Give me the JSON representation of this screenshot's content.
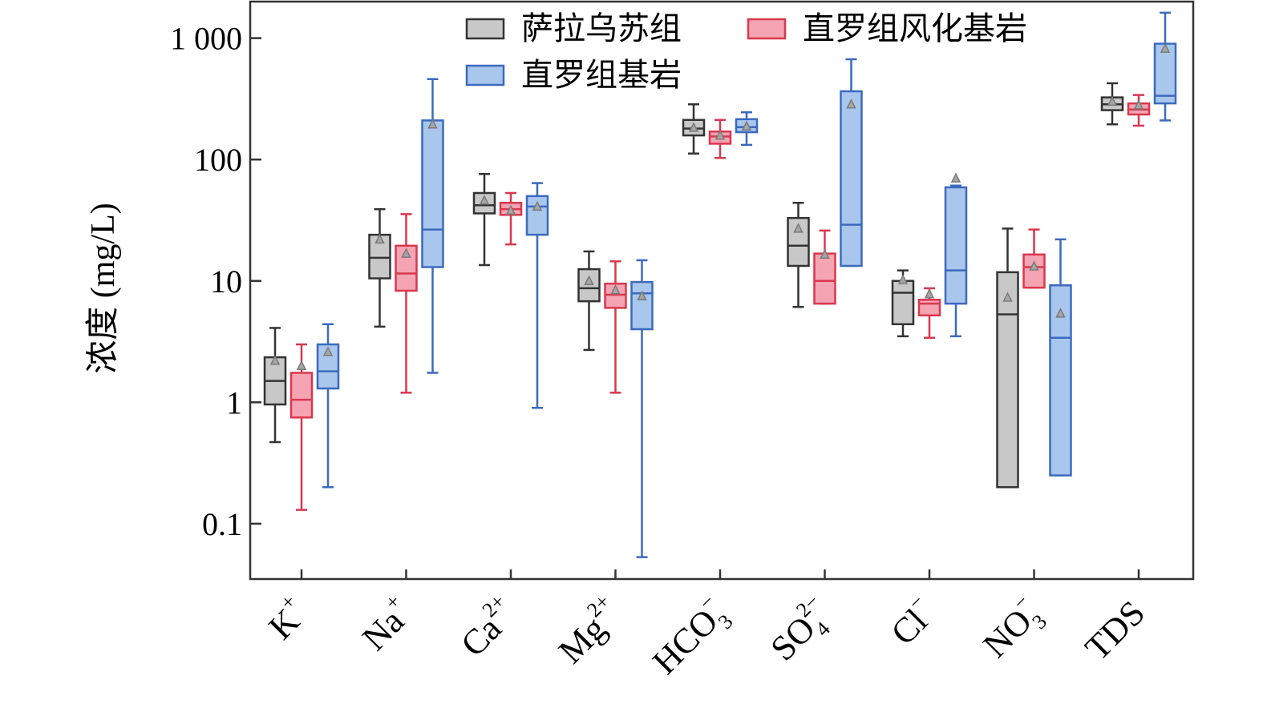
{
  "chart_data": {
    "type": "box",
    "ylabel": "浓度 (mg/L)",
    "yscale": "log",
    "ylim": [
      0.035,
      2000
    ],
    "yticks": [
      {
        "value": 0.1,
        "label": "0.1"
      },
      {
        "value": 1,
        "label": "1"
      },
      {
        "value": 10,
        "label": "10"
      },
      {
        "value": 100,
        "label": "100"
      },
      {
        "value": 1000,
        "label": "1 000"
      }
    ],
    "categories": [
      {
        "base": "K",
        "sup": "+",
        "sub": ""
      },
      {
        "base": "Na",
        "sup": "+",
        "sub": ""
      },
      {
        "base": "Ca",
        "sup": "2+",
        "sub": ""
      },
      {
        "base": "Mg",
        "sup": "2+",
        "sub": ""
      },
      {
        "base": "HCO",
        "sup": "−",
        "sub": "3"
      },
      {
        "base": "SO",
        "sup": "2−",
        "sub": "4"
      },
      {
        "base": "Cl",
        "sup": "−",
        "sub": ""
      },
      {
        "base": "NO",
        "sup": "−",
        "sub": "3"
      },
      {
        "base": "TDS",
        "sup": "",
        "sub": ""
      }
    ],
    "legend": {
      "placement": "top-center"
    },
    "series": [
      {
        "name": "萨拉乌苏组",
        "fill": "#c8c8c8",
        "stroke": "#333333",
        "boxes": [
          {
            "whislo": 0.47,
            "q1": 0.96,
            "med": 1.5,
            "q3": 2.35,
            "whishi": 4.1,
            "mean": 2.2
          },
          {
            "whislo": 4.2,
            "q1": 10.5,
            "med": 15.5,
            "q3": 24,
            "whishi": 39,
            "mean": 22
          },
          {
            "whislo": 13.5,
            "q1": 36,
            "med": 42,
            "q3": 53,
            "whishi": 76,
            "mean": 46
          },
          {
            "whislo": 2.7,
            "q1": 6.8,
            "med": 8.7,
            "q3": 12.5,
            "whishi": 17.5,
            "mean": 10
          },
          {
            "whislo": 112,
            "q1": 158,
            "med": 180,
            "q3": 212,
            "whishi": 285,
            "mean": 183
          },
          {
            "whislo": 6.1,
            "q1": 13.3,
            "med": 19.5,
            "q3": 33,
            "whishi": 44,
            "mean": 27
          },
          {
            "whislo": 3.5,
            "q1": 4.4,
            "med": 8.0,
            "q3": 10.0,
            "whishi": 12.2,
            "mean": 10.2
          },
          {
            "whislo": 0.2,
            "q1": 0.2,
            "med": 5.3,
            "q3": 11.8,
            "whishi": 27,
            "mean": 7.3
          },
          {
            "whislo": 195,
            "q1": 255,
            "med": 285,
            "q3": 325,
            "whishi": 425,
            "mean": 300
          }
        ]
      },
      {
        "name": "直罗组风化基岩",
        "fill": "#f4a4b2",
        "stroke": "#d9384e",
        "boxes": [
          {
            "whislo": 0.13,
            "q1": 0.75,
            "med": 1.05,
            "q3": 1.75,
            "whishi": 3.0,
            "mean": 2.0
          },
          {
            "whislo": 1.2,
            "q1": 8.3,
            "med": 11.5,
            "q3": 19.5,
            "whishi": 35.5,
            "mean": 16.8
          },
          {
            "whislo": 20,
            "q1": 35,
            "med": 39,
            "q3": 44,
            "whishi": 53,
            "mean": 38
          },
          {
            "whislo": 1.2,
            "q1": 6.0,
            "med": 7.7,
            "q3": 9.5,
            "whishi": 14.5,
            "mean": 8.4
          },
          {
            "whislo": 103,
            "q1": 135,
            "med": 155,
            "q3": 170,
            "whishi": 212,
            "mean": 158
          },
          {
            "whislo": 6.5,
            "q1": 6.5,
            "med": 10,
            "q3": 16.8,
            "whishi": 26,
            "mean": 16.5
          },
          {
            "whislo": 3.4,
            "q1": 5.2,
            "med": 6.5,
            "q3": 7.0,
            "whishi": 8.7,
            "mean": 7.8
          },
          {
            "whislo": 8.8,
            "q1": 8.8,
            "med": 13,
            "q3": 16.5,
            "whishi": 26.5,
            "mean": 13.2
          },
          {
            "whislo": 190,
            "q1": 235,
            "med": 258,
            "q3": 290,
            "whishi": 340,
            "mean": 280
          }
        ]
      },
      {
        "name": "直罗组基岩",
        "fill": "#a9c6ec",
        "stroke": "#3b6abf",
        "boxes": [
          {
            "whislo": 0.2,
            "q1": 1.3,
            "med": 1.8,
            "q3": 3.0,
            "whishi": 4.4,
            "mean": 2.6
          },
          {
            "whislo": 1.75,
            "q1": 13,
            "med": 26.5,
            "q3": 210,
            "whishi": 460,
            "mean": 195
          },
          {
            "whislo": 0.9,
            "q1": 24,
            "med": 41,
            "q3": 50,
            "whishi": 64,
            "mean": 41
          },
          {
            "whislo": 0.053,
            "q1": 4.0,
            "med": 7.9,
            "q3": 9.8,
            "whishi": 14.8,
            "mean": 7.5
          },
          {
            "whislo": 132,
            "q1": 168,
            "med": 185,
            "q3": 215,
            "whishi": 245,
            "mean": 188
          },
          {
            "whislo": 13.3,
            "q1": 13.3,
            "med": 29,
            "q3": 365,
            "whishi": 670,
            "mean": 285
          },
          {
            "whislo": 3.5,
            "q1": 6.5,
            "med": 12.2,
            "q3": 59,
            "whishi": 61,
            "mean": 70
          },
          {
            "whislo": 0.25,
            "q1": 0.25,
            "med": 3.4,
            "q3": 9.2,
            "whishi": 22,
            "mean": 5.4
          },
          {
            "whislo": 210,
            "q1": 290,
            "med": 335,
            "q3": 900,
            "whishi": 1620,
            "mean": 820
          }
        ]
      }
    ]
  }
}
